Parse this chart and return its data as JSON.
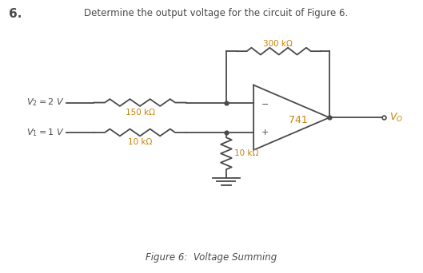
{
  "title": "Determine the output voltage for the circuit of Figure 6.",
  "problem_number": "6.",
  "figure_caption": "Figure 6:  Voltage Summing",
  "v2_label": "$V_2 = 2$ V",
  "v1_label": "$V_1 = 1$ V",
  "r_feedback": "300 kΩ",
  "r2": "150 kΩ",
  "r1": "10 kΩ",
  "r_bottom": "10 kΩ",
  "op_amp_label": "741",
  "vo_label": "$V_O$",
  "text_color": "#000000",
  "label_color": "#c8820a",
  "vo_color": "#c8820a",
  "line_color": "#4a4a4a",
  "bg_color": "#ffffff",
  "lw": 1.3
}
